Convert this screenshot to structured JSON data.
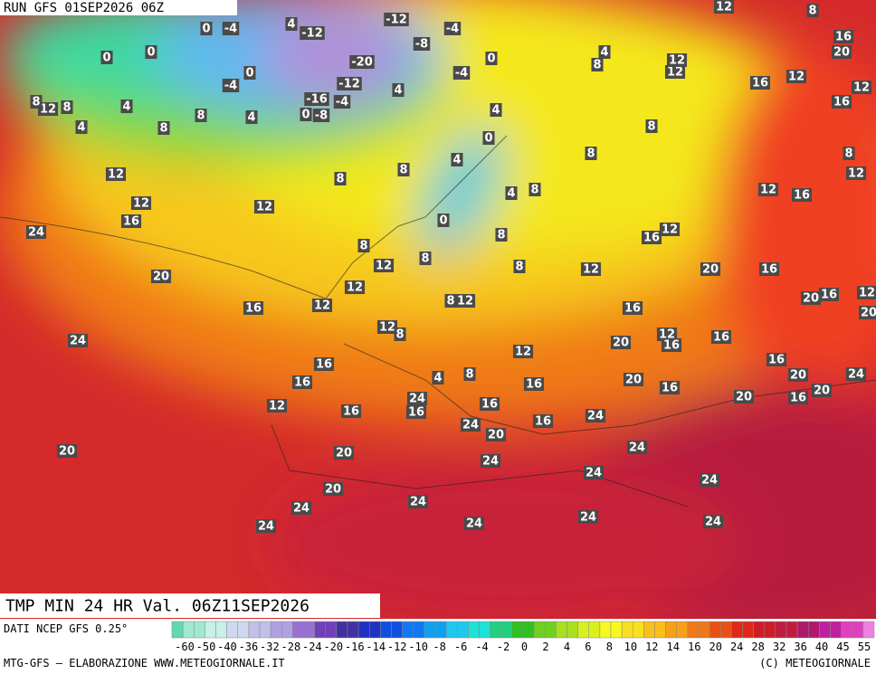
{
  "header": {
    "run": "RUN GFS 01SEP2026 06Z"
  },
  "title": "TMP MIN 24 HR Val. 06Z11SEP2026",
  "footer": {
    "source": "DATI NCEP GFS 0.25°",
    "credit": "MTG-GFS — ELABORAZIONE WWW.METEOGIORNALE.IT",
    "copyright": "(C) METEOGIORNALE"
  },
  "colorbar": {
    "labels": [
      "-60",
      "-50",
      "-40",
      "-36",
      "-32",
      "-28",
      "-24",
      "-20",
      "-16",
      "-14",
      "-12",
      "-10",
      "-8",
      "-6",
      "-4",
      "-2",
      "0",
      "2",
      "4",
      "6",
      "8",
      "10",
      "12",
      "14",
      "16",
      "20",
      "24",
      "28",
      "32",
      "36",
      "40",
      "45",
      "55"
    ]
  },
  "map_labels": [
    "0",
    "-4",
    "4",
    "-12",
    "-12",
    "-8",
    "-4",
    "0",
    "0",
    "0",
    "-4",
    "-20",
    "-12",
    "4",
    "-16",
    "-4",
    "0",
    "-8",
    "-4",
    "0",
    "4",
    "12",
    "8",
    "8",
    "4",
    "4",
    "8",
    "8",
    "4",
    "0",
    "4",
    "8",
    "8",
    "12",
    "12",
    "16",
    "12",
    "0",
    "4",
    "8",
    "8",
    "8",
    "8",
    "4",
    "12",
    "12",
    "12",
    "8",
    "16",
    "20",
    "12",
    "16",
    "12",
    "16",
    "8",
    "12",
    "12",
    "16",
    "24",
    "8",
    "12",
    "8",
    "8",
    "8",
    "12",
    "16",
    "12",
    "20",
    "16",
    "20",
    "12",
    "12",
    "16",
    "8",
    "12",
    "12",
    "8",
    "16",
    "20",
    "16",
    "12",
    "20",
    "24",
    "12",
    "20",
    "12",
    "16",
    "16",
    "16",
    "16",
    "4",
    "8",
    "16",
    "20",
    "16",
    "16",
    "20",
    "24",
    "20",
    "16",
    "20",
    "12",
    "24",
    "16",
    "16",
    "16",
    "24",
    "20",
    "16",
    "24",
    "20",
    "20",
    "24",
    "24",
    "24",
    "24",
    "20",
    "24",
    "24",
    "24",
    "24",
    "24",
    "24"
  ]
}
